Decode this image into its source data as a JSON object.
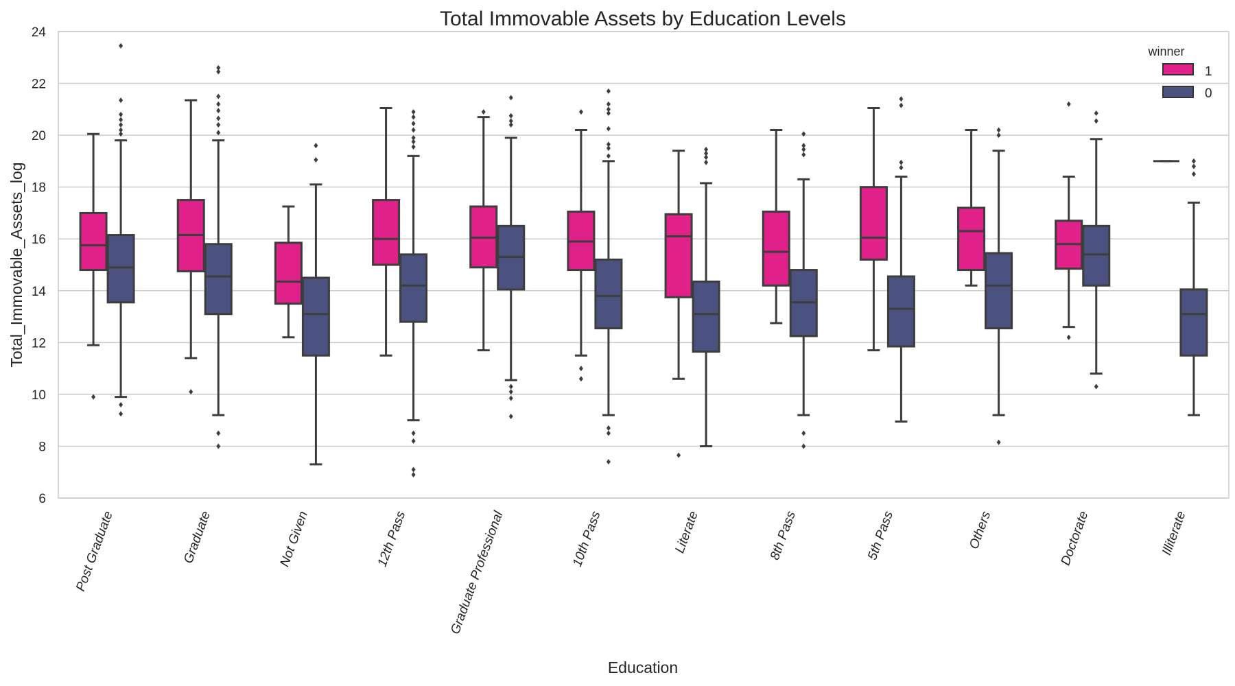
{
  "chart_data": {
    "type": "boxplot",
    "title": "Total Immovable Assets by Education Levels",
    "xlabel": "Education",
    "ylabel": "Total_Immovable_Assets_log",
    "ylim": [
      6,
      24
    ],
    "yticks": [
      6,
      8,
      10,
      12,
      14,
      16,
      18,
      20,
      22,
      24
    ],
    "grid": true,
    "legend": {
      "title": "winner",
      "position": "top-right"
    },
    "categories": [
      "Post Graduate",
      "Graduate",
      "Not Given",
      "12th Pass",
      "Graduate Professional",
      "10th Pass",
      "Literate",
      "8th Pass",
      "5th Pass",
      "Others",
      "Doctorate",
      "Illiterate"
    ],
    "series": [
      {
        "name": "1",
        "color": "#e0218a",
        "boxes": [
          {
            "whislo": 11.9,
            "q1": 14.8,
            "med": 15.75,
            "q3": 17.0,
            "whishi": 20.05,
            "fliers": [
              9.9
            ]
          },
          {
            "whislo": 11.4,
            "q1": 14.75,
            "med": 16.15,
            "q3": 17.5,
            "whishi": 21.35,
            "fliers": [
              10.1
            ]
          },
          {
            "whislo": 12.2,
            "q1": 13.5,
            "med": 14.35,
            "q3": 15.85,
            "whishi": 17.25,
            "fliers": []
          },
          {
            "whislo": 11.5,
            "q1": 15.0,
            "med": 16.0,
            "q3": 17.5,
            "whishi": 21.05,
            "fliers": []
          },
          {
            "whislo": 11.7,
            "q1": 14.9,
            "med": 16.05,
            "q3": 17.25,
            "whishi": 20.7,
            "fliers": [
              20.9
            ]
          },
          {
            "whislo": 11.5,
            "q1": 14.8,
            "med": 15.9,
            "q3": 17.05,
            "whishi": 20.2,
            "fliers": [
              20.9,
              11.0,
              10.6
            ]
          },
          {
            "whislo": 10.6,
            "q1": 13.75,
            "med": 16.1,
            "q3": 16.95,
            "whishi": 19.4,
            "fliers": [
              7.65
            ]
          },
          {
            "whislo": 12.75,
            "q1": 14.2,
            "med": 15.5,
            "q3": 17.05,
            "whishi": 20.2,
            "fliers": []
          },
          {
            "whislo": 11.7,
            "q1": 15.2,
            "med": 16.05,
            "q3": 18.0,
            "whishi": 21.05,
            "fliers": []
          },
          {
            "whislo": 14.2,
            "q1": 14.8,
            "med": 16.3,
            "q3": 17.2,
            "whishi": 20.2,
            "fliers": []
          },
          {
            "whislo": 12.6,
            "q1": 14.85,
            "med": 15.8,
            "q3": 16.7,
            "whishi": 18.4,
            "fliers": [
              21.2,
              12.2
            ]
          },
          {
            "whislo": 19.0,
            "q1": 19.0,
            "med": 19.0,
            "q3": 19.0,
            "whishi": 19.0,
            "fliers": []
          }
        ]
      },
      {
        "name": "0",
        "color": "#4c5280",
        "boxes": [
          {
            "whislo": 9.9,
            "q1": 13.55,
            "med": 14.9,
            "q3": 16.15,
            "whishi": 19.8,
            "fliers": [
              23.45,
              21.35,
              20.8,
              20.6,
              20.4,
              20.2,
              20.05,
              9.6,
              9.25
            ]
          },
          {
            "whislo": 9.2,
            "q1": 13.1,
            "med": 14.55,
            "q3": 15.8,
            "whishi": 19.8,
            "fliers": [
              22.6,
              22.45,
              21.5,
              21.2,
              20.95,
              20.65,
              20.4,
              20.1,
              8.5,
              8.0
            ]
          },
          {
            "whislo": 7.3,
            "q1": 11.5,
            "med": 13.1,
            "q3": 14.5,
            "whishi": 18.1,
            "fliers": [
              19.6,
              19.05
            ]
          },
          {
            "whislo": 9.0,
            "q1": 12.8,
            "med": 14.2,
            "q3": 15.4,
            "whishi": 19.2,
            "fliers": [
              20.9,
              20.7,
              20.45,
              20.2,
              19.9,
              19.75,
              19.55,
              8.5,
              8.2,
              7.1,
              6.9
            ]
          },
          {
            "whislo": 10.55,
            "q1": 14.05,
            "med": 15.3,
            "q3": 16.5,
            "whishi": 19.9,
            "fliers": [
              21.45,
              20.75,
              20.55,
              20.4,
              10.3,
              10.1,
              9.85,
              9.15
            ]
          },
          {
            "whislo": 9.2,
            "q1": 12.55,
            "med": 13.8,
            "q3": 15.2,
            "whishi": 19.0,
            "fliers": [
              21.7,
              21.2,
              21.0,
              20.85,
              20.25,
              19.65,
              19.5,
              19.2,
              8.7,
              8.5,
              7.4
            ]
          },
          {
            "whislo": 8.0,
            "q1": 11.65,
            "med": 13.1,
            "q3": 14.35,
            "whishi": 18.15,
            "fliers": [
              19.45,
              19.3,
              19.15,
              18.95
            ]
          },
          {
            "whislo": 9.2,
            "q1": 12.25,
            "med": 13.55,
            "q3": 14.8,
            "whishi": 18.3,
            "fliers": [
              20.05,
              19.6,
              19.45,
              19.25,
              8.5,
              8.0
            ]
          },
          {
            "whislo": 8.95,
            "q1": 11.85,
            "med": 13.3,
            "q3": 14.55,
            "whishi": 18.4,
            "fliers": [
              21.4,
              21.15,
              18.95,
              18.75
            ]
          },
          {
            "whislo": 9.2,
            "q1": 12.55,
            "med": 14.2,
            "q3": 15.45,
            "whishi": 19.4,
            "fliers": [
              20.2,
              20.0,
              8.15
            ]
          },
          {
            "whislo": 10.8,
            "q1": 14.2,
            "med": 15.4,
            "q3": 16.5,
            "whishi": 19.85,
            "fliers": [
              20.85,
              20.55,
              10.3
            ]
          },
          {
            "whislo": 9.2,
            "q1": 11.5,
            "med": 13.1,
            "q3": 14.05,
            "whishi": 17.4,
            "fliers": [
              19.0,
              18.8,
              18.5
            ]
          }
        ]
      }
    ]
  }
}
